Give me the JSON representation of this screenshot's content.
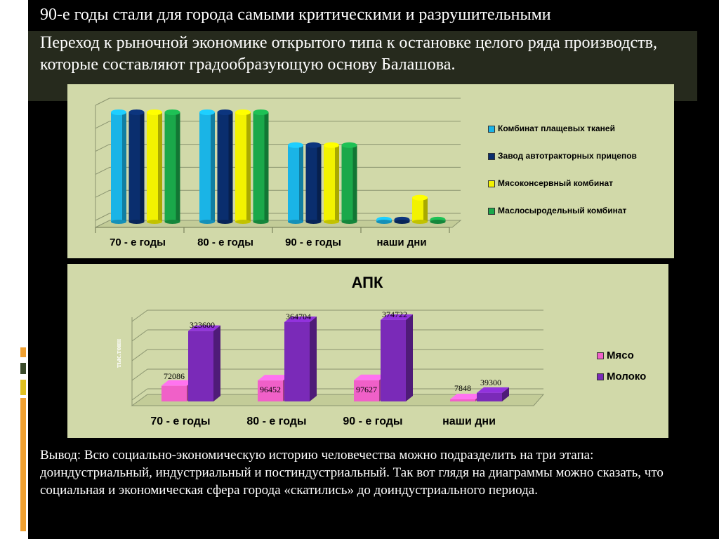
{
  "slide": {
    "title": "90-е годы стали для города самыми критическими и разрушительными",
    "subtitle": "Переход к рыночной экономике открытого типа к остановке целого ряда производств, которые составляют градообразующую основу Балашова.",
    "conclusion": "Вывод: Всю социально-экономическую историю человечества можно подразделить на три этапа: доиндустриальный, индустриальный и постиндустриальный. Так вот глядя на диаграммы можно сказать, что социальная и экономическая сфера города «скатились» до доиндустриального периода."
  },
  "colors": {
    "panel_bg": "#d1d9a9",
    "slide_bg": "#000000",
    "deco_orange": "#f0a030",
    "deco_olive": "#3a4a2a",
    "deco_yellow": "#e0c020"
  },
  "chart_data": [
    {
      "type": "bar",
      "title": "",
      "categories": [
        "70 - е годы",
        "80 - е годы",
        "90 - е годы",
        "наши дни"
      ],
      "series": [
        {
          "name": "Комбинат плащевых тканей",
          "values": [
            100,
            100,
            70,
            2
          ],
          "color": "#1ab4e6"
        },
        {
          "name": "Завод автотракторных прицепов",
          "values": [
            100,
            100,
            70,
            2
          ],
          "color": "#0a2e6e"
        },
        {
          "name": "Мясоконсервный комбинат",
          "values": [
            100,
            100,
            70,
            22
          ],
          "color": "#f2f200"
        },
        {
          "name": "Маслосыродельный комбинат",
          "values": [
            100,
            100,
            70,
            2
          ],
          "color": "#1aa84a"
        }
      ],
      "ylim": [
        0,
        100
      ],
      "grid": true,
      "legend": "right"
    },
    {
      "type": "bar",
      "title": "АПК",
      "ylabel": "тыс.тонн",
      "categories": [
        "70 - е годы",
        "80 - е годы",
        "90 - е годы",
        "наши дни"
      ],
      "series": [
        {
          "name": "Мясо",
          "values": [
            72086,
            96452,
            97627,
            7848
          ],
          "labels": [
            "72086",
            "96452",
            "97627",
            "7848"
          ],
          "color": "#f060c8"
        },
        {
          "name": "Молоко",
          "values": [
            323600,
            364704,
            374722,
            39300
          ],
          "labels": [
            "323600",
            "364704",
            "374722",
            "39300"
          ],
          "color": "#7a2ab8"
        }
      ],
      "ylim": [
        0,
        400000
      ],
      "grid": true,
      "legend": "right"
    }
  ]
}
